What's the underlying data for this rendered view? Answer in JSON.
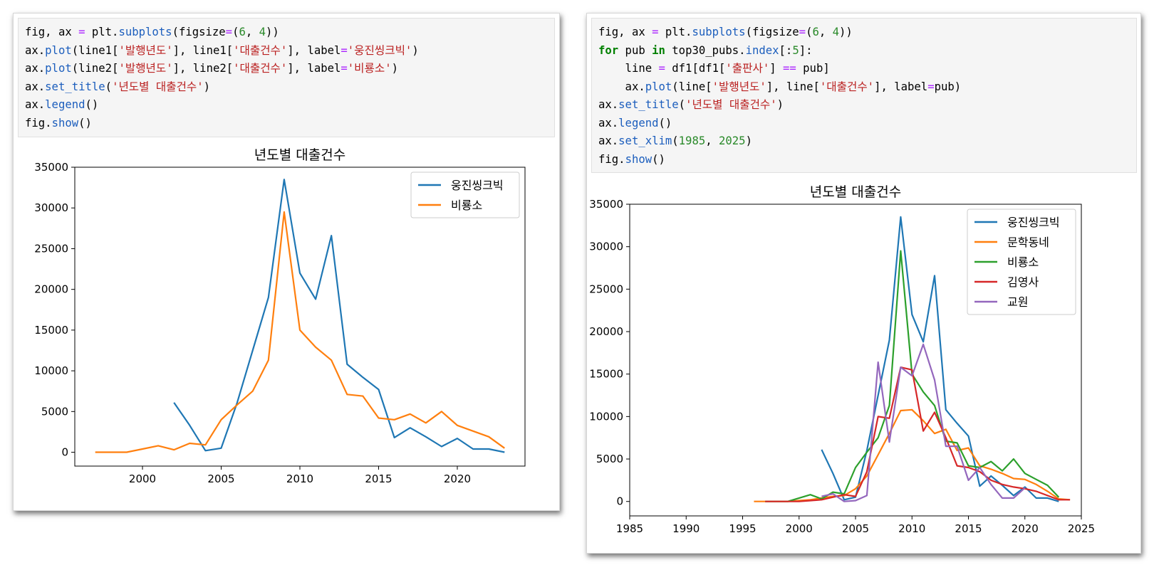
{
  "left_cell": {
    "code_lines": [
      [
        {
          "t": "fig, ax "
        },
        {
          "t": "=",
          "c": "op"
        },
        {
          "t": " plt."
        },
        {
          "t": "subplots",
          "c": "fn"
        },
        {
          "t": "(figsize"
        },
        {
          "t": "=",
          "c": "op"
        },
        {
          "t": "("
        },
        {
          "t": "6",
          "c": "num"
        },
        {
          "t": ", "
        },
        {
          "t": "4",
          "c": "num"
        },
        {
          "t": "))"
        }
      ],
      [
        {
          "t": "ax."
        },
        {
          "t": "plot",
          "c": "fn"
        },
        {
          "t": "(line1["
        },
        {
          "t": "'발행년도'",
          "c": "str"
        },
        {
          "t": "], line1["
        },
        {
          "t": "'대출건수'",
          "c": "str"
        },
        {
          "t": "], label"
        },
        {
          "t": "=",
          "c": "op"
        },
        {
          "t": "'웅진씽크빅'",
          "c": "str"
        },
        {
          "t": ")"
        }
      ],
      [
        {
          "t": "ax."
        },
        {
          "t": "plot",
          "c": "fn"
        },
        {
          "t": "(line2["
        },
        {
          "t": "'발행년도'",
          "c": "str"
        },
        {
          "t": "], line2["
        },
        {
          "t": "'대출건수'",
          "c": "str"
        },
        {
          "t": "], label"
        },
        {
          "t": "=",
          "c": "op"
        },
        {
          "t": "'비룡소'",
          "c": "str"
        },
        {
          "t": ")"
        }
      ],
      [
        {
          "t": "ax."
        },
        {
          "t": "set_title",
          "c": "fn"
        },
        {
          "t": "("
        },
        {
          "t": "'년도별 대출건수'",
          "c": "str"
        },
        {
          "t": ")"
        }
      ],
      [
        {
          "t": "ax."
        },
        {
          "t": "legend",
          "c": "fn"
        },
        {
          "t": "()"
        }
      ],
      [
        {
          "t": "fig."
        },
        {
          "t": "show",
          "c": "fn"
        },
        {
          "t": "()"
        }
      ]
    ]
  },
  "right_cell": {
    "code_lines": [
      [
        {
          "t": "fig, ax "
        },
        {
          "t": "=",
          "c": "op"
        },
        {
          "t": " plt."
        },
        {
          "t": "subplots",
          "c": "fn"
        },
        {
          "t": "(figsize"
        },
        {
          "t": "=",
          "c": "op"
        },
        {
          "t": "("
        },
        {
          "t": "6",
          "c": "num"
        },
        {
          "t": ", "
        },
        {
          "t": "4",
          "c": "num"
        },
        {
          "t": "))"
        }
      ],
      [
        {
          "t": "for",
          "c": "kw"
        },
        {
          "t": " pub "
        },
        {
          "t": "in",
          "c": "kw"
        },
        {
          "t": " top30_pubs."
        },
        {
          "t": "index",
          "c": "fn"
        },
        {
          "t": "[:"
        },
        {
          "t": "5",
          "c": "num"
        },
        {
          "t": "]:"
        }
      ],
      [
        {
          "t": "    line "
        },
        {
          "t": "=",
          "c": "op"
        },
        {
          "t": " df1[df1["
        },
        {
          "t": "'출판사'",
          "c": "str"
        },
        {
          "t": "] "
        },
        {
          "t": "==",
          "c": "op"
        },
        {
          "t": " pub]"
        }
      ],
      [
        {
          "t": "    ax."
        },
        {
          "t": "plot",
          "c": "fn"
        },
        {
          "t": "(line["
        },
        {
          "t": "'발행년도'",
          "c": "str"
        },
        {
          "t": "], line["
        },
        {
          "t": "'대출건수'",
          "c": "str"
        },
        {
          "t": "], label"
        },
        {
          "t": "=",
          "c": "op"
        },
        {
          "t": "pub)"
        }
      ],
      [
        {
          "t": "ax."
        },
        {
          "t": "set_title",
          "c": "fn"
        },
        {
          "t": "("
        },
        {
          "t": "'년도별 대출건수'",
          "c": "str"
        },
        {
          "t": ")"
        }
      ],
      [
        {
          "t": "ax."
        },
        {
          "t": "legend",
          "c": "fn"
        },
        {
          "t": "()"
        }
      ],
      [
        {
          "t": "ax."
        },
        {
          "t": "set_xlim",
          "c": "fn"
        },
        {
          "t": "("
        },
        {
          "t": "1985",
          "c": "num"
        },
        {
          "t": ", "
        },
        {
          "t": "2025",
          "c": "num"
        },
        {
          "t": ")"
        }
      ],
      [
        {
          "t": "fig."
        },
        {
          "t": "show",
          "c": "fn"
        },
        {
          "t": "()"
        }
      ]
    ]
  },
  "colors": {
    "fn": "#1c5ebd",
    "str": "#ba2121",
    "num": "#2a8a2a",
    "kw": "#008000",
    "op": "#aa22ff",
    "blue": "#1f77b4",
    "orange": "#ff7f0e",
    "green": "#2ca02c",
    "red": "#d62728",
    "purple": "#9467bd"
  },
  "chart_data": [
    {
      "type": "line",
      "title": "년도별 대출건수",
      "xlabel": "",
      "ylabel": "",
      "xlim": [
        1995.7,
        2024.3
      ],
      "ylim": [
        -1700,
        35000
      ],
      "xticks": [
        2000,
        2005,
        2010,
        2015,
        2020
      ],
      "yticks": [
        0,
        5000,
        10000,
        15000,
        20000,
        25000,
        30000,
        35000
      ],
      "legend": "top-right",
      "series": [
        {
          "name": "웅진씽크빅",
          "color": "#1f77b4",
          "x": [
            2002,
            2003,
            2004,
            2005,
            2006,
            2007,
            2008,
            2009,
            2010,
            2011,
            2012,
            2013,
            2014,
            2015,
            2016,
            2017,
            2018,
            2019,
            2020,
            2021,
            2022,
            2023
          ],
          "y": [
            6100,
            3300,
            200,
            500,
            6000,
            12500,
            19000,
            33500,
            22000,
            18800,
            26600,
            10800,
            9200,
            7700,
            1800,
            3000,
            1900,
            700,
            1700,
            400,
            400,
            0
          ]
        },
        {
          "name": "비룡소",
          "color": "#ff7f0e",
          "x": [
            1997,
            1998,
            1999,
            2000,
            2001,
            2002,
            2003,
            2004,
            2005,
            2006,
            2007,
            2008,
            2009,
            2010,
            2011,
            2012,
            2013,
            2014,
            2015,
            2016,
            2017,
            2018,
            2019,
            2020,
            2021,
            2022,
            2023
          ],
          "y": [
            0,
            0,
            0,
            400,
            800,
            300,
            1100,
            900,
            4000,
            5800,
            7500,
            11300,
            29500,
            15000,
            12900,
            11300,
            7100,
            6900,
            4200,
            4000,
            4700,
            3600,
            5000,
            3300,
            2600,
            1900,
            500
          ]
        }
      ]
    },
    {
      "type": "line",
      "title": "년도별 대출건수",
      "xlabel": "",
      "ylabel": "",
      "xlim": [
        1985,
        2025
      ],
      "ylim": [
        -1700,
        35000
      ],
      "xticks": [
        1985,
        1990,
        1995,
        2000,
        2005,
        2010,
        2015,
        2020,
        2025
      ],
      "yticks": [
        0,
        5000,
        10000,
        15000,
        20000,
        25000,
        30000,
        35000
      ],
      "legend": "top-right",
      "series": [
        {
          "name": "웅진씽크빅",
          "color": "#1f77b4",
          "x": [
            2002,
            2003,
            2004,
            2005,
            2006,
            2007,
            2008,
            2009,
            2010,
            2011,
            2012,
            2013,
            2014,
            2015,
            2016,
            2017,
            2018,
            2019,
            2020,
            2021,
            2022,
            2023
          ],
          "y": [
            6100,
            3300,
            200,
            500,
            6000,
            12500,
            19000,
            33500,
            22000,
            18800,
            26600,
            10800,
            9200,
            7700,
            1800,
            3000,
            1900,
            700,
            1700,
            400,
            400,
            0
          ]
        },
        {
          "name": "문학동네",
          "color": "#ff7f0e",
          "x": [
            1996,
            1997,
            1998,
            1999,
            2000,
            2001,
            2002,
            2003,
            2004,
            2005,
            2006,
            2007,
            2008,
            2009,
            2010,
            2011,
            2012,
            2013,
            2014,
            2015,
            2016,
            2017,
            2018,
            2019,
            2020,
            2021,
            2022,
            2023,
            2024
          ],
          "y": [
            0,
            0,
            0,
            0,
            100,
            200,
            400,
            600,
            700,
            1500,
            3000,
            5500,
            8000,
            10700,
            10800,
            9500,
            8000,
            8500,
            6000,
            6300,
            4200,
            3800,
            3300,
            2700,
            2600,
            2000,
            1200,
            300,
            200
          ]
        },
        {
          "name": "비룡소",
          "color": "#2ca02c",
          "x": [
            1997,
            1998,
            1999,
            2000,
            2001,
            2002,
            2003,
            2004,
            2005,
            2006,
            2007,
            2008,
            2009,
            2010,
            2011,
            2012,
            2013,
            2014,
            2015,
            2016,
            2017,
            2018,
            2019,
            2020,
            2021,
            2022,
            2023
          ],
          "y": [
            0,
            0,
            0,
            400,
            800,
            300,
            1100,
            900,
            4000,
            5800,
            7500,
            11300,
            29500,
            15000,
            12900,
            11300,
            7100,
            6900,
            4200,
            4000,
            4700,
            3600,
            5000,
            3300,
            2600,
            1900,
            500
          ]
        },
        {
          "name": "김영사",
          "color": "#d62728",
          "x": [
            1997,
            1998,
            1999,
            2000,
            2001,
            2002,
            2003,
            2004,
            2005,
            2006,
            2007,
            2008,
            2009,
            2010,
            2011,
            2012,
            2013,
            2014,
            2015,
            2016,
            2017,
            2018,
            2019,
            2020,
            2021,
            2022,
            2023,
            2024
          ],
          "y": [
            0,
            0,
            0,
            0,
            100,
            200,
            500,
            800,
            600,
            3500,
            10000,
            9800,
            15800,
            15500,
            8300,
            10500,
            7500,
            4200,
            4000,
            3500,
            2500,
            2000,
            1700,
            1500,
            1200,
            700,
            200,
            200
          ]
        },
        {
          "name": "교원",
          "color": "#9467bd",
          "x": [
            2002,
            2003,
            2004,
            2005,
            2006,
            2007,
            2008,
            2009,
            2010,
            2011,
            2012,
            2013,
            2014,
            2015,
            2016,
            2017,
            2018,
            2019,
            2020
          ],
          "y": [
            600,
            900,
            0,
            100,
            700,
            16400,
            7000,
            15800,
            14800,
            18500,
            14300,
            6500,
            6500,
            2500,
            4000,
            2000,
            400,
            400,
            1600
          ]
        }
      ]
    }
  ]
}
